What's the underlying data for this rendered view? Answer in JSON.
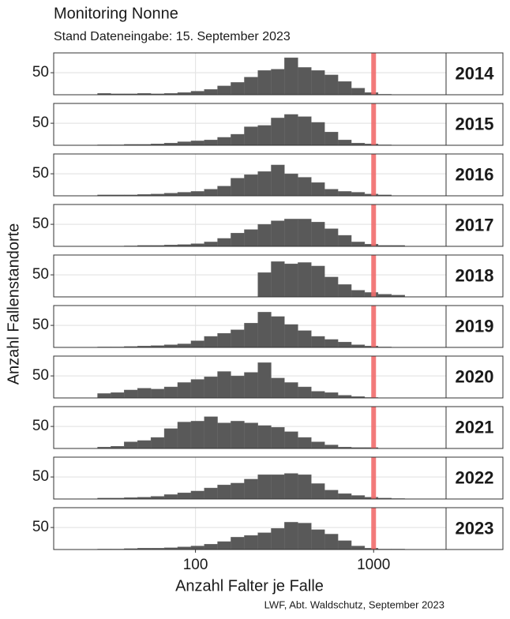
{
  "chart_data": {
    "type": "histogram",
    "title": "Monitoring Nonne",
    "subtitle": "Stand Dateneingabe: 15. September 2023",
    "xlabel": "Anzahl Falter je Falle",
    "ylabel": "Anzahl Fallenstandorte",
    "caption": "LWF, Abt. Waldschutz, September 2023",
    "xscale": "log",
    "xlim": [
      16,
      2550
    ],
    "xticks": [
      100,
      1000
    ],
    "ylim": [
      0,
      95
    ],
    "yticks": [
      50
    ],
    "grid": true,
    "color": "#595959",
    "reference_line": {
      "value": 1000,
      "color": "#f26d6d"
    },
    "bins": [
      20,
      23.7,
      28.2,
      33.5,
      39.8,
      47.3,
      56.2,
      66.8,
      79.4,
      94.4,
      112,
      133,
      158,
      188,
      224,
      266,
      316,
      376,
      447,
      531,
      631,
      750,
      891,
      1059,
      1259,
      1496,
      1778
    ],
    "series": [
      {
        "name": "2014",
        "values": [
          0,
          0,
          3,
          2,
          2,
          3,
          2,
          3,
          5,
          8,
          12,
          20,
          28,
          40,
          55,
          58,
          84,
          62,
          55,
          45,
          30,
          15,
          5,
          1,
          0,
          0
        ]
      },
      {
        "name": "2015",
        "values": [
          0,
          0,
          1,
          1,
          2,
          2,
          3,
          5,
          8,
          10,
          12,
          18,
          25,
          42,
          45,
          62,
          70,
          65,
          52,
          30,
          12,
          5,
          3,
          1,
          0,
          0
        ]
      },
      {
        "name": "2016",
        "values": [
          0,
          0,
          2,
          2,
          2,
          3,
          4,
          6,
          8,
          10,
          15,
          22,
          40,
          48,
          55,
          70,
          50,
          42,
          30,
          15,
          10,
          8,
          4,
          2,
          0,
          0
        ]
      },
      {
        "name": "2017",
        "values": [
          0,
          0,
          0,
          0,
          1,
          2,
          2,
          3,
          4,
          6,
          10,
          18,
          30,
          38,
          50,
          58,
          62,
          62,
          55,
          40,
          25,
          10,
          5,
          2,
          2,
          0
        ]
      },
      {
        "name": "2018",
        "values": [
          0,
          0,
          0,
          0,
          0,
          0,
          0,
          0,
          0,
          0,
          0,
          0,
          0,
          0,
          55,
          80,
          75,
          78,
          70,
          45,
          28,
          15,
          10,
          6,
          4,
          0
        ]
      },
      {
        "name": "2019",
        "values": [
          0,
          0,
          1,
          1,
          2,
          3,
          4,
          6,
          8,
          15,
          25,
          32,
          40,
          55,
          80,
          70,
          52,
          38,
          25,
          18,
          12,
          6,
          3,
          1,
          0,
          0
        ]
      },
      {
        "name": "2020",
        "values": [
          0,
          0,
          10,
          12,
          18,
          22,
          20,
          25,
          35,
          42,
          48,
          60,
          50,
          58,
          80,
          45,
          35,
          25,
          15,
          12,
          6,
          3,
          1,
          0,
          0,
          0
        ]
      },
      {
        "name": "2021",
        "values": [
          0,
          0,
          3,
          5,
          15,
          18,
          25,
          45,
          60,
          62,
          72,
          58,
          62,
          58,
          52,
          48,
          38,
          25,
          15,
          8,
          3,
          2,
          2,
          0,
          0,
          0
        ]
      },
      {
        "name": "2022",
        "values": [
          0,
          0,
          2,
          2,
          3,
          4,
          6,
          10,
          14,
          18,
          25,
          32,
          36,
          45,
          55,
          55,
          58,
          55,
          35,
          20,
          12,
          8,
          4,
          2,
          1,
          0
        ]
      },
      {
        "name": "2023",
        "values": [
          0,
          0,
          1,
          1,
          2,
          3,
          3,
          4,
          6,
          8,
          12,
          18,
          28,
          32,
          38,
          48,
          62,
          60,
          45,
          35,
          20,
          8,
          3,
          1,
          1,
          0
        ]
      }
    ]
  }
}
